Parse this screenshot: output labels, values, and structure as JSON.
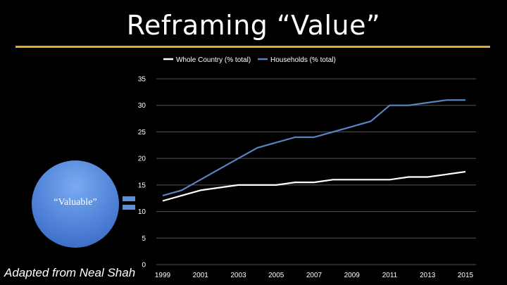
{
  "slide": {
    "title": "Reframing “Value”",
    "circle_label": "“Valuable”",
    "caption": "Adapted from Neal Shah",
    "accent_color": "#e6a835",
    "circle_color": "#4f82d8"
  },
  "chart_data": {
    "type": "line",
    "title": "",
    "xlabel": "",
    "ylabel": "",
    "x": [
      1999,
      2000,
      2001,
      2002,
      2003,
      2004,
      2005,
      2006,
      2007,
      2008,
      2009,
      2010,
      2011,
      2012,
      2013,
      2014,
      2015
    ],
    "x_ticks": [
      "1999",
      "2001",
      "2003",
      "2005",
      "2007",
      "2009",
      "2011",
      "2013",
      "2015"
    ],
    "y_ticks": [
      "0",
      "5",
      "10",
      "15",
      "20",
      "25",
      "30",
      "35"
    ],
    "ylim": [
      0,
      35
    ],
    "grid": true,
    "legend_position": "top",
    "series": [
      {
        "name": "Whole Country (% total)",
        "color": "#ffffff",
        "values": [
          12,
          13,
          14,
          14.5,
          15,
          15,
          15,
          15.5,
          15.5,
          16,
          16,
          16,
          16,
          16.5,
          16.5,
          17,
          17.5
        ]
      },
      {
        "name": "Households (% total)",
        "color": "#5b84c4",
        "values": [
          13,
          14,
          16,
          18,
          20,
          22,
          23,
          24,
          24,
          25,
          26,
          27,
          30,
          30,
          30.5,
          31,
          31
        ]
      }
    ]
  }
}
